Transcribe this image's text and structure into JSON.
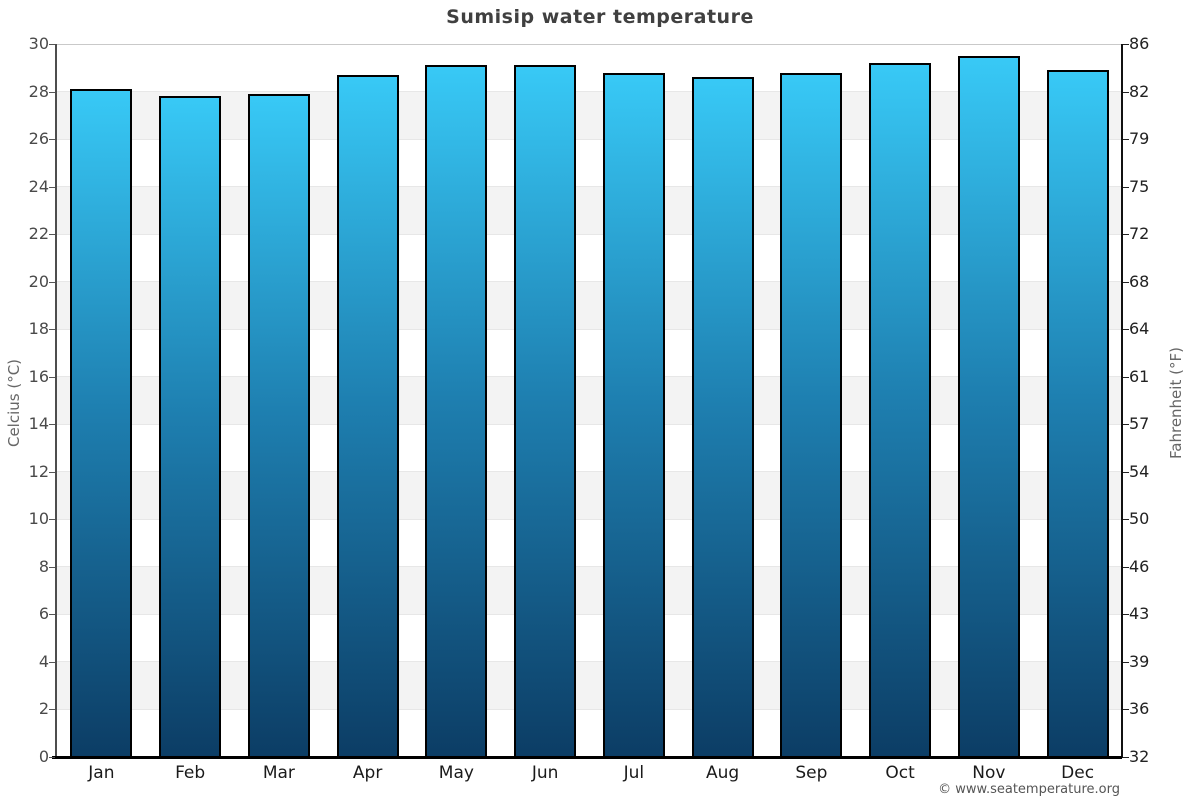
{
  "title": "Sumisip water temperature",
  "footer": {
    "credit": "© www.seatemperature.org"
  },
  "chart_data": {
    "type": "bar",
    "title": "Sumisip water temperature",
    "categories": [
      "Jan",
      "Feb",
      "Mar",
      "Apr",
      "May",
      "Jun",
      "Jul",
      "Aug",
      "Sep",
      "Oct",
      "Nov",
      "Dec"
    ],
    "values_celsius": [
      28.1,
      27.8,
      27.9,
      28.7,
      29.1,
      29.1,
      28.8,
      28.6,
      28.8,
      29.2,
      29.5,
      28.9
    ],
    "xlabel": "",
    "ylabel_left": "Celcius (°C)",
    "ylabel_right": "Fahrenheit (°F)",
    "ylim": [
      0,
      30
    ],
    "y_tick_step": 2,
    "y_ticks_celsius": [
      0,
      2,
      4,
      6,
      8,
      10,
      12,
      14,
      16,
      18,
      20,
      22,
      24,
      26,
      28,
      30
    ],
    "y_ticks_fahrenheit": [
      "32",
      "36",
      "39",
      "43",
      "46",
      "50",
      "54",
      "57",
      "61",
      "64",
      "68",
      "72",
      "75",
      "79",
      "82",
      "86"
    ],
    "grid": "alternating horizontal bands every 2°C",
    "legend": "none",
    "colors": {
      "bar_gradient_top": "#38c9f6",
      "bar_gradient_mid": "#1e7fb0",
      "bar_gradient_bottom": "#0c3d65",
      "bar_border": "#000000",
      "band_gray": "#f3f3f3",
      "band_edge": "#e7e7e7",
      "top_gridline": "#c9c9c9",
      "title_color": "#404040",
      "footer_color": "#555555"
    }
  }
}
